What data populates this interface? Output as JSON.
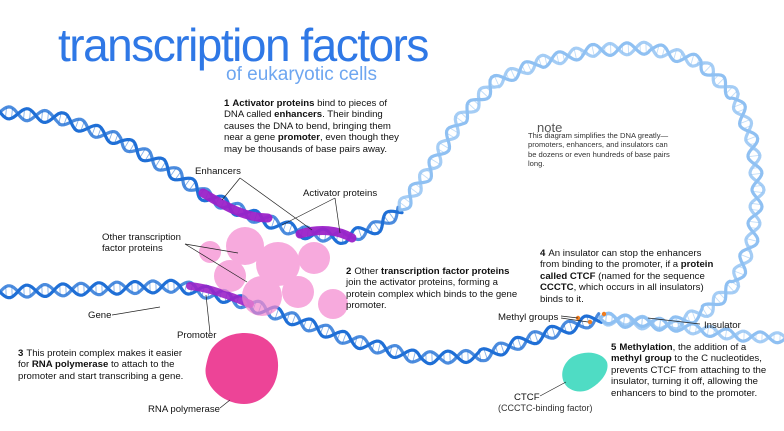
{
  "title": "transcription factors",
  "subtitle": "of eukaryotic cells",
  "labels": {
    "enhancers": "Enhancers",
    "activator_proteins": "Activator proteins",
    "other_tf": "Other transcription factor proteins",
    "gene": "Gene",
    "promoter": "Promoter",
    "rna_polymerase": "RNA polymerase",
    "methyl_groups": "Methyl groups",
    "insulator": "Insulator",
    "ctcf": "CTCF",
    "ctcf_sub": "(CCCTC-binding factor)"
  },
  "note": {
    "title": "note",
    "body": "This diagram simplifies the DNA greatly—promoters, enhancers, and insulators can be dozens or even hundreds of base pairs long."
  },
  "steps": {
    "s1": {
      "num": "1",
      "a": "Activator proteins",
      "b": " bind to pieces of DNA called ",
      "c": "enhancers",
      "d": ". Their binding causes the DNA to bend, bringing them near a gene ",
      "e": "promoter",
      "f": ", even though they may be thousands of base pairs away."
    },
    "s2": {
      "num": "2",
      "a": "Other ",
      "b": "transcription factor proteins",
      "c": " join the activator proteins, forming a protein complex which binds to the gene promoter."
    },
    "s3": {
      "num": "3",
      "a": "This protein complex makes it easier for ",
      "b": "RNA polymerase",
      "c": " to attach to the promoter and start transcribing a gene."
    },
    "s4": {
      "num": "4",
      "a": "An insulator can stop the enhancers from binding to the promoter, if a ",
      "b": "protein called CTCF",
      "c": " (named for the sequence ",
      "d": "CCCTC",
      "e": ", which occurs in all insulators) binds to it."
    },
    "s5": {
      "num": "5",
      "a": "Methylation",
      "b": ", the addition of a ",
      "c": "methyl group",
      "d": " to the C nucleotides, prevents CTCF from attaching to the insulator, turning it off, allowing the enhancers to bind to the promoter."
    }
  },
  "colors": {
    "dna_dark": "#1f6fd6",
    "dna_light": "#8fc0f2",
    "enhancer": "#9b22c8",
    "protein_pink": "#f28ad0",
    "rna_pol": "#ea2a89",
    "ctcf": "#4fdcc4",
    "methyl": "#f07c1e",
    "title": "#2f78e6"
  }
}
